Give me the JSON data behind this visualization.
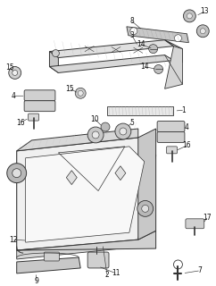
{
  "bg_color": "#ffffff",
  "lc": "#333333",
  "fig_width": 2.42,
  "fig_height": 3.2,
  "dpi": 100,
  "label_fontsize": 5.5
}
